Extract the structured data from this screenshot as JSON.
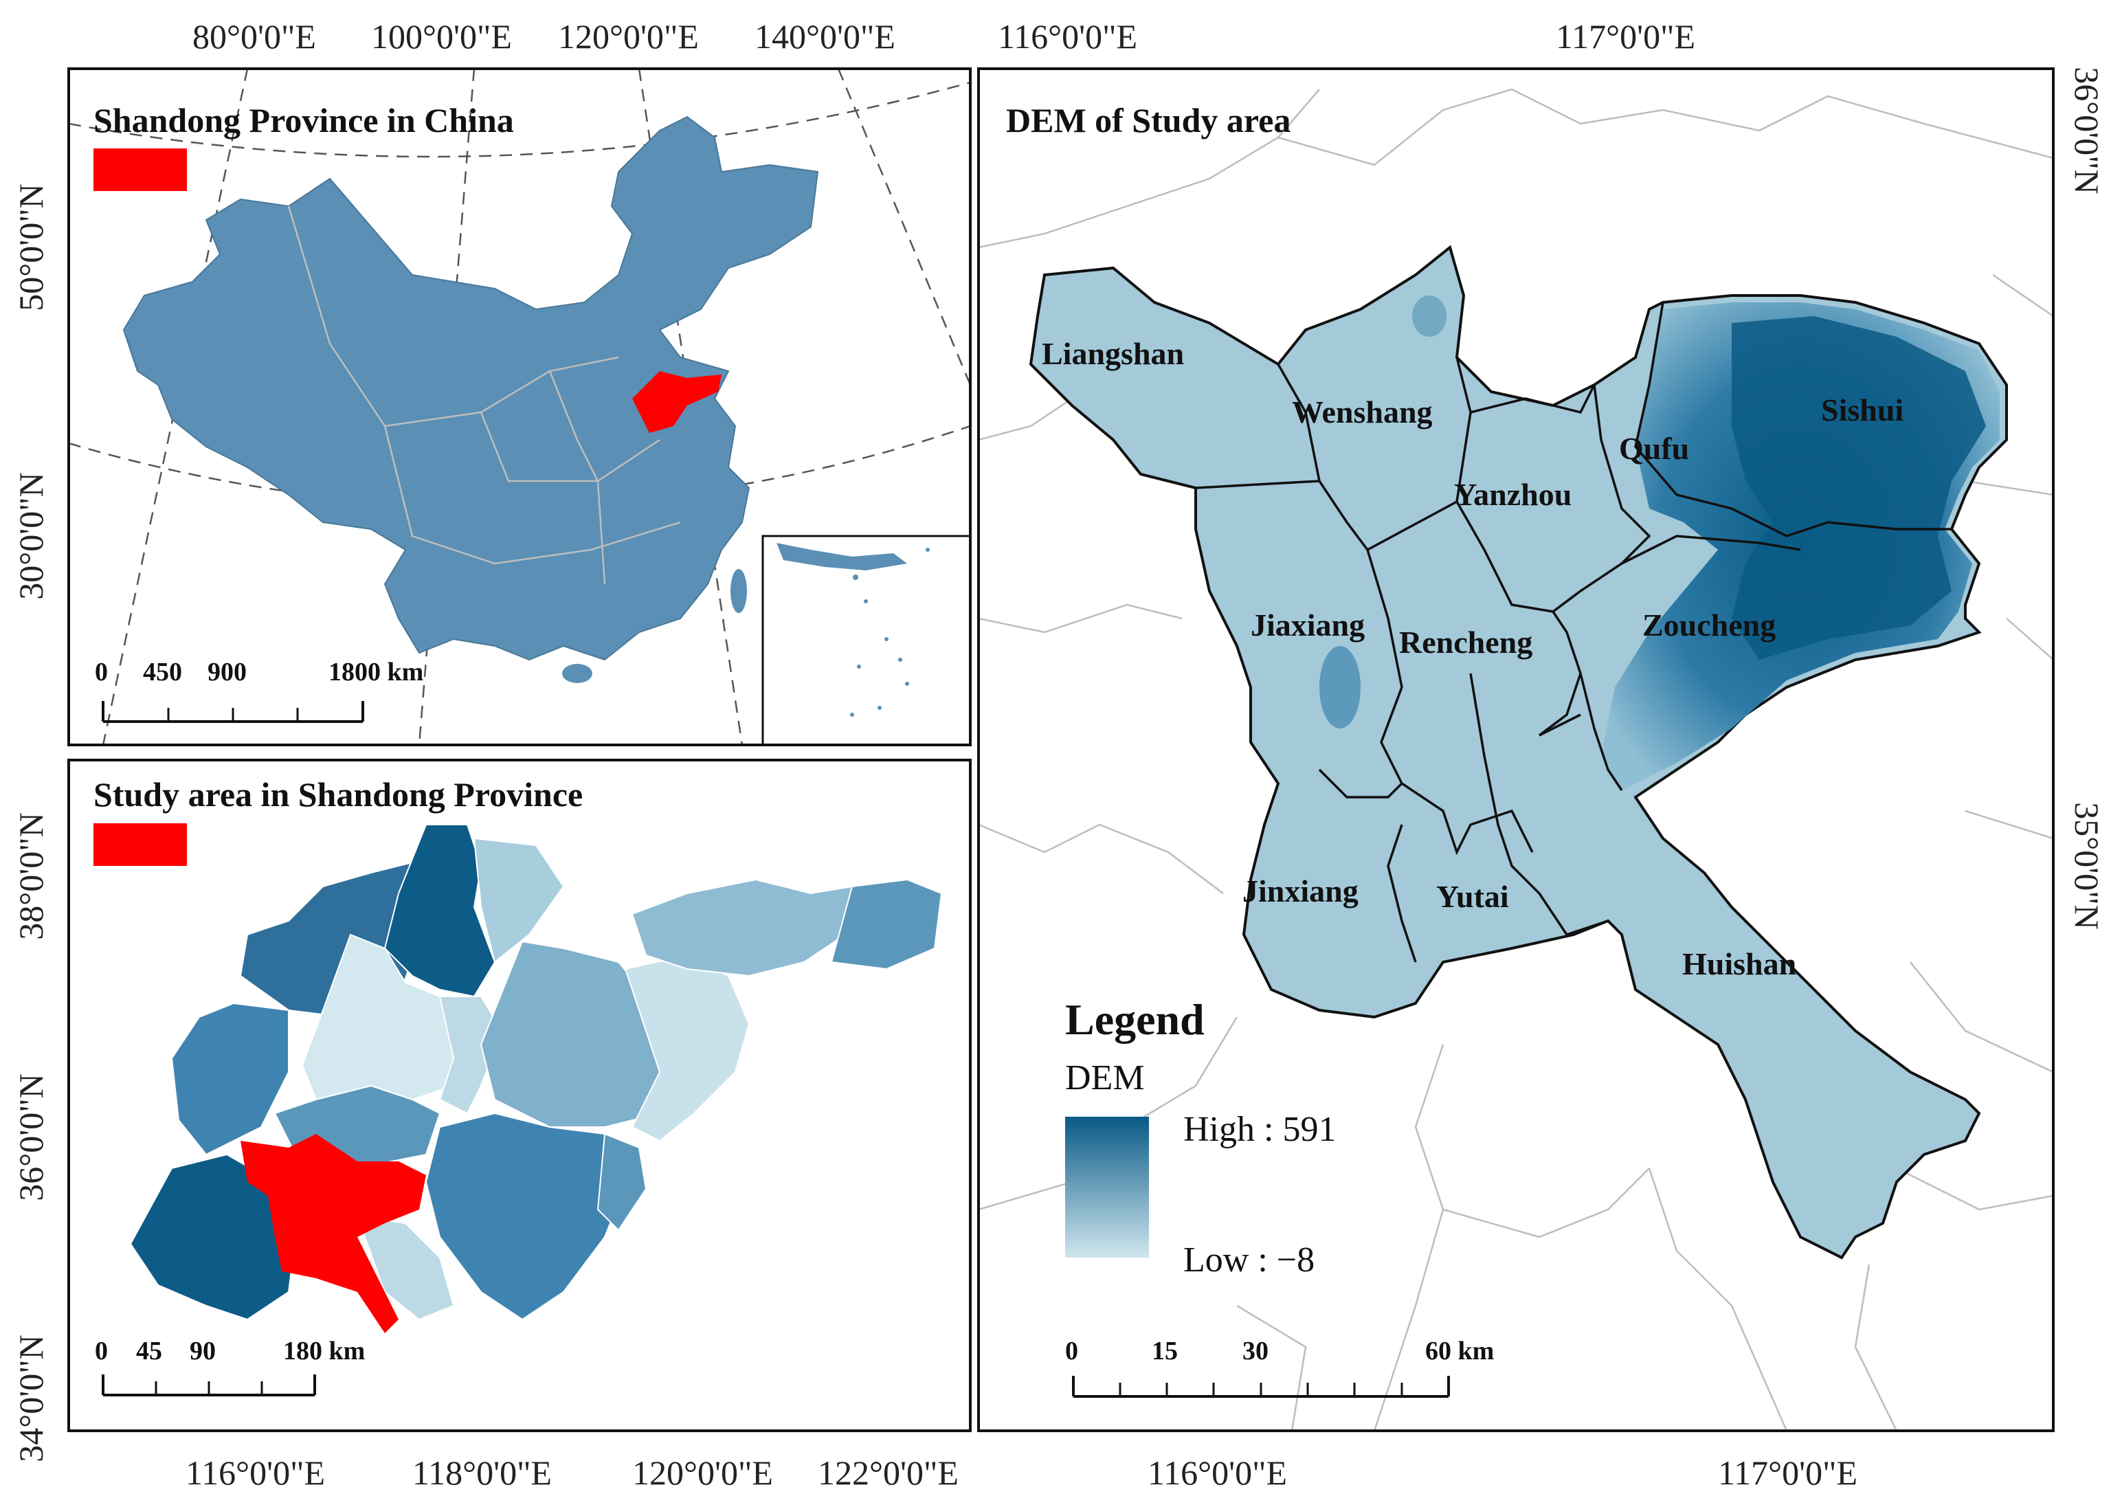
{
  "panels": {
    "china": {
      "title": "Shandong Province in China",
      "scale_labels": [
        "0",
        "450",
        "900",
        "1800 km"
      ],
      "top_ticks": [
        "80°0'0\"E",
        "100°0'0\"E",
        "120°0'0\"E",
        "140°0'0\"E"
      ],
      "left_ticks": [
        "50°0'0\"N",
        "30°0'0\"N"
      ],
      "highlight_color": "#ff0000",
      "land_color": "#5b8fb5"
    },
    "shandong": {
      "title": "Study area in Shandong Province",
      "scale_labels": [
        "0",
        "45",
        "90",
        "180 km"
      ],
      "left_ticks": [
        "38°0'0\"N",
        "36°0'0\"N",
        "34°0'0\"N"
      ],
      "bottom_ticks": [
        "116°0'0\"E",
        "118°0'0\"E",
        "120°0'0\"E",
        "122°0'0\"E"
      ],
      "highlight_color": "#ff0000"
    },
    "dem": {
      "title": "DEM of Study area",
      "top_ticks": [
        "116°0'0\"E",
        "117°0'0\"E"
      ],
      "bottom_ticks": [
        "116°0'0\"E",
        "117°0'0\"E"
      ],
      "right_ticks": [
        "36°0'0\"N",
        "35°0'0\"N"
      ],
      "counties": [
        "Liangshan",
        "Wenshang",
        "Yanzhou",
        "Qufu",
        "Sishui",
        "Jiaxiang",
        "Rencheng",
        "Zoucheng",
        "Jinxiang",
        "Yutai",
        "Huishan"
      ],
      "legend": {
        "title": "Legend",
        "subtitle": "DEM",
        "high": "High : 591",
        "low": "Low : −8",
        "high_color": "#0a5a86",
        "low_color": "#cfe6ee"
      },
      "scale_labels": [
        "0",
        "15",
        "30",
        "60 km"
      ]
    }
  }
}
